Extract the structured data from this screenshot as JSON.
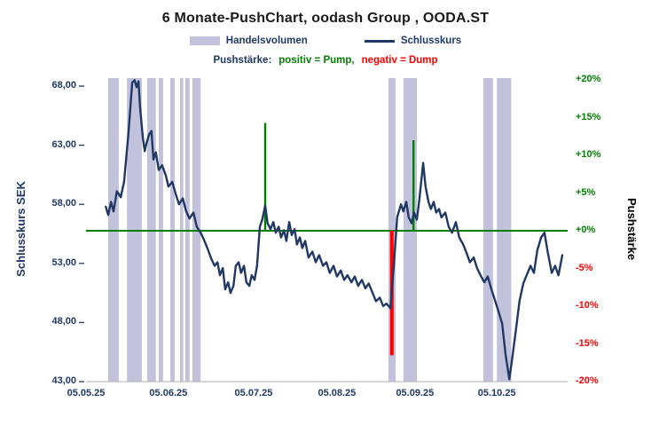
{
  "title": "6 Monate-PushChart,  oodash Group , OODA.ST",
  "legend": {
    "volume_label": "Handelsvolumen",
    "close_label": "Schlusskurs",
    "push_prefix": "Pushstärke:",
    "pump_label": "positiv = Pump,",
    "dump_label": "negativ = Dump"
  },
  "colors": {
    "close_line": "#203864",
    "volume": "#c3c2dd",
    "pump": "#008000",
    "dump": "#ff0000",
    "axis_navy": "#1f3864"
  },
  "chart_data": {
    "type": "line",
    "title": "6 Monate-PushChart,  oodash Group , OODA.ST",
    "left_axis": {
      "label": "Schlusskurs SEK",
      "min": 43,
      "max": 68,
      "ticks": [
        {
          "label": "68,00",
          "value": 68
        },
        {
          "label": "63,00",
          "value": 63
        },
        {
          "label": "58,00",
          "value": 58
        },
        {
          "label": "53,00",
          "value": 53
        },
        {
          "label": "48,00",
          "value": 48
        },
        {
          "label": "43,00",
          "value": 43
        }
      ]
    },
    "right_axis": {
      "label": "Pushstärke",
      "min": -20,
      "max": 20,
      "ticks": [
        {
          "label": "+20%",
          "value": 20
        },
        {
          "label": "+15%",
          "value": 15
        },
        {
          "label": "+10%",
          "value": 10
        },
        {
          "label": "+5%",
          "value": 5
        },
        {
          "label": "+0%",
          "value": 0
        },
        {
          "label": "-5%",
          "value": -5
        },
        {
          "label": "-10%",
          "value": -10
        },
        {
          "label": "-15%",
          "value": -15
        },
        {
          "label": "-20%",
          "value": -20
        }
      ]
    },
    "x_axis": {
      "ticks": [
        {
          "label": "05.05.25",
          "x": 0.0
        },
        {
          "label": "05.06.25",
          "x": 0.171
        },
        {
          "label": "05.07.25",
          "x": 0.348
        },
        {
          "label": "05.08.25",
          "x": 0.521
        },
        {
          "label": "05.09.25",
          "x": 0.683
        },
        {
          "label": "05.10.25",
          "x": 0.853
        }
      ]
    },
    "zero_line_pct": 0,
    "volume_bands": [
      {
        "x": 0.046,
        "w": 0.022
      },
      {
        "x": 0.085,
        "w": 0.031
      },
      {
        "x": 0.127,
        "w": 0.018
      },
      {
        "x": 0.151,
        "w": 0.009
      },
      {
        "x": 0.175,
        "w": 0.009
      },
      {
        "x": 0.195,
        "w": 0.007
      },
      {
        "x": 0.206,
        "w": 0.009
      },
      {
        "x": 0.221,
        "w": 0.017
      },
      {
        "x": 0.628,
        "w": 0.015
      },
      {
        "x": 0.659,
        "w": 0.028
      },
      {
        "x": 0.825,
        "w": 0.02
      },
      {
        "x": 0.853,
        "w": 0.03
      }
    ],
    "pump_spikes": [
      {
        "x": 0.372,
        "pct": 14.3
      },
      {
        "x": 0.68,
        "pct": 12.0
      }
    ],
    "dump_bars": [
      {
        "x": 0.635,
        "pct": -16.5
      }
    ],
    "series_name": "Schlusskurs",
    "series": [
      [
        0.041,
        57.8
      ],
      [
        0.046,
        57.1
      ],
      [
        0.052,
        58.2
      ],
      [
        0.057,
        57.4
      ],
      [
        0.064,
        59.1
      ],
      [
        0.072,
        58.6
      ],
      [
        0.079,
        59.9
      ],
      [
        0.088,
        64.0
      ],
      [
        0.096,
        68.3
      ],
      [
        0.101,
        68.5
      ],
      [
        0.105,
        67.9
      ],
      [
        0.109,
        68.4
      ],
      [
        0.112,
        66.3
      ],
      [
        0.118,
        63.6
      ],
      [
        0.122,
        62.5
      ],
      [
        0.125,
        63.1
      ],
      [
        0.131,
        63.9
      ],
      [
        0.136,
        64.2
      ],
      [
        0.14,
        61.8
      ],
      [
        0.145,
        62.4
      ],
      [
        0.151,
        60.9
      ],
      [
        0.158,
        61.3
      ],
      [
        0.166,
        60.4
      ],
      [
        0.171,
        59.5
      ],
      [
        0.179,
        59.9
      ],
      [
        0.186,
        58.9
      ],
      [
        0.193,
        58.0
      ],
      [
        0.201,
        58.5
      ],
      [
        0.208,
        57.4
      ],
      [
        0.215,
        56.8
      ],
      [
        0.223,
        57.3
      ],
      [
        0.23,
        56.1
      ],
      [
        0.238,
        55.6
      ],
      [
        0.245,
        55.0
      ],
      [
        0.252,
        54.3
      ],
      [
        0.26,
        53.4
      ],
      [
        0.267,
        52.8
      ],
      [
        0.273,
        53.1
      ],
      [
        0.278,
        52.0
      ],
      [
        0.284,
        52.6
      ],
      [
        0.289,
        50.8
      ],
      [
        0.295,
        51.4
      ],
      [
        0.3,
        50.5
      ],
      [
        0.306,
        51.1
      ],
      [
        0.311,
        52.8
      ],
      [
        0.317,
        53.1
      ],
      [
        0.322,
        52.2
      ],
      [
        0.328,
        52.8
      ],
      [
        0.333,
        51.4
      ],
      [
        0.339,
        51.1
      ],
      [
        0.344,
        52.0
      ],
      [
        0.35,
        51.6
      ],
      [
        0.355,
        52.8
      ],
      [
        0.361,
        56.1
      ],
      [
        0.366,
        56.7
      ],
      [
        0.372,
        57.9
      ],
      [
        0.377,
        56.4
      ],
      [
        0.383,
        55.9
      ],
      [
        0.389,
        56.5
      ],
      [
        0.394,
        55.6
      ],
      [
        0.4,
        56.1
      ],
      [
        0.405,
        55.2
      ],
      [
        0.411,
        55.8
      ],
      [
        0.416,
        54.9
      ],
      [
        0.422,
        56.5
      ],
      [
        0.427,
        55.4
      ],
      [
        0.433,
        55.9
      ],
      [
        0.438,
        54.6
      ],
      [
        0.444,
        55.2
      ],
      [
        0.449,
        54.3
      ],
      [
        0.455,
        54.9
      ],
      [
        0.462,
        53.5
      ],
      [
        0.47,
        54.0
      ],
      [
        0.477,
        53.1
      ],
      [
        0.484,
        53.7
      ],
      [
        0.492,
        52.8
      ],
      [
        0.499,
        53.1
      ],
      [
        0.506,
        52.2
      ],
      [
        0.514,
        52.8
      ],
      [
        0.521,
        51.9
      ],
      [
        0.529,
        52.4
      ],
      [
        0.536,
        51.6
      ],
      [
        0.543,
        52.0
      ],
      [
        0.551,
        51.4
      ],
      [
        0.558,
        51.9
      ],
      [
        0.565,
        51.1
      ],
      [
        0.573,
        51.6
      ],
      [
        0.58,
        50.9
      ],
      [
        0.587,
        51.3
      ],
      [
        0.595,
        50.5
      ],
      [
        0.602,
        49.8
      ],
      [
        0.61,
        50.1
      ],
      [
        0.617,
        49.4
      ],
      [
        0.624,
        49.6
      ],
      [
        0.632,
        49.2
      ],
      [
        0.639,
        52.8
      ],
      [
        0.646,
        56.9
      ],
      [
        0.654,
        58.0
      ],
      [
        0.659,
        57.4
      ],
      [
        0.665,
        58.2
      ],
      [
        0.67,
        56.9
      ],
      [
        0.676,
        56.4
      ],
      [
        0.681,
        57.3
      ],
      [
        0.687,
        56.7
      ],
      [
        0.692,
        58.4
      ],
      [
        0.7,
        61.5
      ],
      [
        0.705,
        59.5
      ],
      [
        0.711,
        58.2
      ],
      [
        0.716,
        57.6
      ],
      [
        0.722,
        58.2
      ],
      [
        0.727,
        57.3
      ],
      [
        0.733,
        57.6
      ],
      [
        0.738,
        56.9
      ],
      [
        0.746,
        57.3
      ],
      [
        0.753,
        56.1
      ],
      [
        0.76,
        55.6
      ],
      [
        0.768,
        56.5
      ],
      [
        0.775,
        55.2
      ],
      [
        0.783,
        54.6
      ],
      [
        0.79,
        53.9
      ],
      [
        0.797,
        53.1
      ],
      [
        0.805,
        53.5
      ],
      [
        0.812,
        52.6
      ],
      [
        0.819,
        52.0
      ],
      [
        0.827,
        51.4
      ],
      [
        0.834,
        51.9
      ],
      [
        0.841,
        50.9
      ],
      [
        0.849,
        49.9
      ],
      [
        0.856,
        49.0
      ],
      [
        0.864,
        47.9
      ],
      [
        0.871,
        45.3
      ],
      [
        0.879,
        43.2
      ],
      [
        0.886,
        45.3
      ],
      [
        0.893,
        47.5
      ],
      [
        0.9,
        49.8
      ],
      [
        0.908,
        51.3
      ],
      [
        0.915,
        52.0
      ],
      [
        0.923,
        52.8
      ],
      [
        0.93,
        52.2
      ],
      [
        0.937,
        54.1
      ],
      [
        0.945,
        55.2
      ],
      [
        0.952,
        55.6
      ],
      [
        0.959,
        53.9
      ],
      [
        0.967,
        52.2
      ],
      [
        0.974,
        52.8
      ],
      [
        0.981,
        52.0
      ],
      [
        0.989,
        53.7
      ]
    ]
  }
}
